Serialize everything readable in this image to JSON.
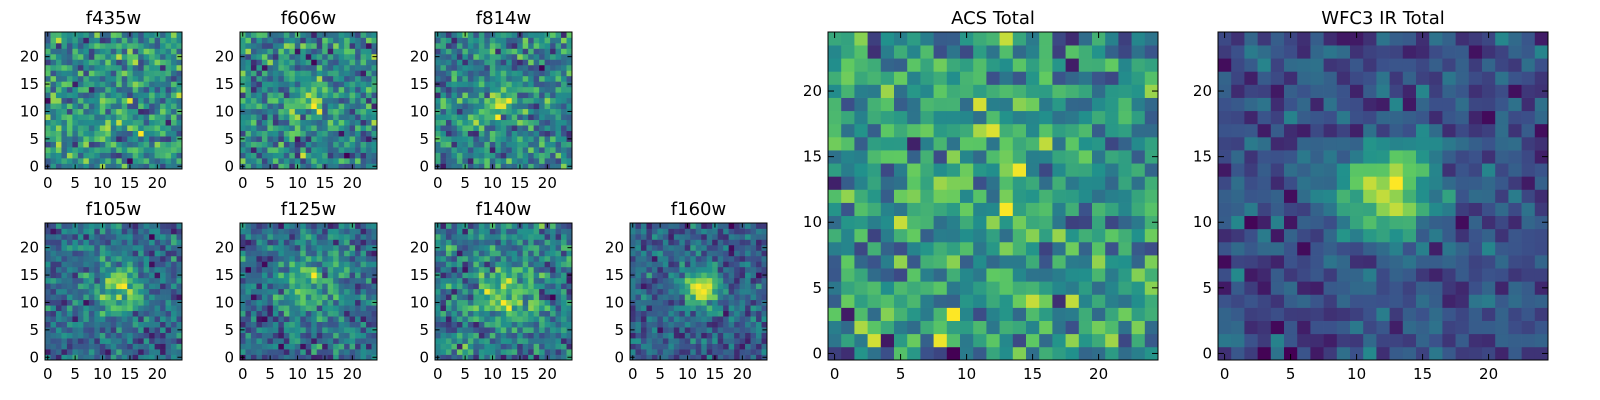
{
  "chart_data": {
    "type": "heatmap",
    "colormap": "viridis",
    "colormap_stops": [
      "#440154",
      "#3b528b",
      "#21918c",
      "#5ec962",
      "#fde725"
    ],
    "panels": [
      {
        "id": "f435w",
        "title": "f435w",
        "grid": 25,
        "x_ticks": [
          0,
          5,
          10,
          15,
          20
        ],
        "y_ticks": [
          0,
          5,
          10,
          15,
          20
        ],
        "xlim": [
          0,
          24
        ],
        "ylim": [
          0,
          24
        ],
        "center": [
          12,
          12
        ],
        "peak": 0.05,
        "sigma": 3.0,
        "base": 0.65,
        "noise": 0.28,
        "seed": 11
      },
      {
        "id": "f606w",
        "title": "f606w",
        "grid": 25,
        "x_ticks": [
          0,
          5,
          10,
          15,
          20
        ],
        "y_ticks": [
          0,
          5,
          10,
          15,
          20
        ],
        "xlim": [
          0,
          24
        ],
        "ylim": [
          0,
          24
        ],
        "center": [
          12,
          12
        ],
        "peak": 0.25,
        "sigma": 2.5,
        "base": 0.6,
        "noise": 0.25,
        "seed": 23
      },
      {
        "id": "f814w",
        "title": "f814w",
        "grid": 25,
        "x_ticks": [
          0,
          5,
          10,
          15,
          20
        ],
        "y_ticks": [
          0,
          5,
          10,
          15,
          20
        ],
        "xlim": [
          0,
          24
        ],
        "ylim": [
          0,
          24
        ],
        "center": [
          11,
          12
        ],
        "peak": 0.3,
        "sigma": 2.5,
        "base": 0.6,
        "noise": 0.25,
        "seed": 37
      },
      {
        "id": "f105w",
        "title": "f105w",
        "grid": 25,
        "x_ticks": [
          0,
          5,
          10,
          15,
          20
        ],
        "y_ticks": [
          0,
          5,
          10,
          15,
          20
        ],
        "xlim": [
          0,
          24
        ],
        "ylim": [
          0,
          24
        ],
        "center": [
          13,
          12.5
        ],
        "peak": 0.45,
        "sigma": 3.0,
        "base": 0.5,
        "noise": 0.18,
        "seed": 41
      },
      {
        "id": "f125w",
        "title": "f125w",
        "grid": 25,
        "x_ticks": [
          0,
          5,
          10,
          15,
          20
        ],
        "y_ticks": [
          0,
          5,
          10,
          15,
          20
        ],
        "xlim": [
          0,
          24
        ],
        "ylim": [
          0,
          24
        ],
        "center": [
          12,
          13
        ],
        "peak": 0.35,
        "sigma": 3.5,
        "base": 0.55,
        "noise": 0.2,
        "seed": 53
      },
      {
        "id": "f140w",
        "title": "f140w",
        "grid": 25,
        "x_ticks": [
          0,
          5,
          10,
          15,
          20
        ],
        "y_ticks": [
          0,
          5,
          10,
          15,
          20
        ],
        "xlim": [
          0,
          24
        ],
        "ylim": [
          0,
          24
        ],
        "center": [
          12,
          12
        ],
        "peak": 0.35,
        "sigma": 3.5,
        "base": 0.5,
        "noise": 0.2,
        "seed": 67
      },
      {
        "id": "f160w",
        "title": "f160w",
        "grid": 25,
        "x_ticks": [
          0,
          5,
          10,
          15,
          20
        ],
        "y_ticks": [
          0,
          5,
          10,
          15,
          20
        ],
        "xlim": [
          0,
          24
        ],
        "ylim": [
          0,
          24
        ],
        "center": [
          12.5,
          12.5
        ],
        "peak": 0.55,
        "sigma": 2.2,
        "base": 0.35,
        "noise": 0.13,
        "seed": 79
      },
      {
        "id": "acs-total",
        "title": "ACS Total",
        "grid": 25,
        "x_ticks": [
          0,
          5,
          10,
          15,
          20
        ],
        "y_ticks": [
          0,
          5,
          10,
          15,
          20
        ],
        "xlim": [
          0,
          24
        ],
        "ylim": [
          0,
          24
        ],
        "center": [
          12,
          12
        ],
        "peak": 0.12,
        "sigma": 3.0,
        "base": 0.62,
        "noise": 0.26,
        "seed": 97
      },
      {
        "id": "wfc3-ir-total",
        "title": "WFC3 IR Total",
        "grid": 25,
        "x_ticks": [
          0,
          5,
          10,
          15,
          20
        ],
        "y_ticks": [
          0,
          5,
          10,
          15,
          20
        ],
        "xlim": [
          0,
          24
        ],
        "ylim": [
          0,
          24
        ],
        "center": [
          12.5,
          12.5
        ],
        "peak": 0.55,
        "sigma": 2.4,
        "base": 0.42,
        "noise": 0.1,
        "seed": 113
      }
    ]
  }
}
